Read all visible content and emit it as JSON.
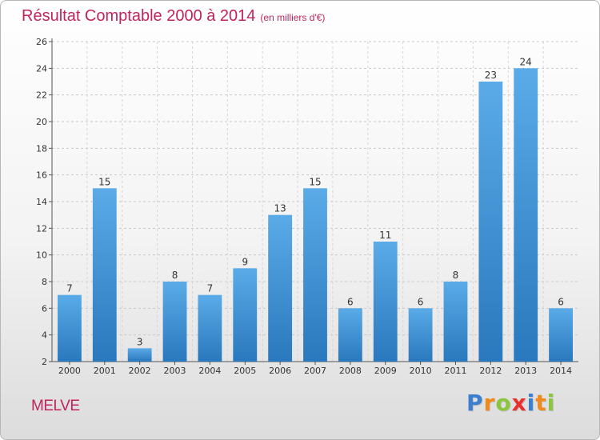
{
  "title": "Résultat Comptable 2000 à 2014",
  "subtitle": "(en milliers d'€)",
  "place": "MELVE",
  "logo": {
    "text": "Proxiti",
    "letters": [
      {
        "ch": "P",
        "color": "#3a7fd0"
      },
      {
        "ch": "r",
        "color": "#f08a1c"
      },
      {
        "ch": "o",
        "color": "#8cc63f"
      },
      {
        "ch": "x",
        "color": "#e8312f"
      },
      {
        "ch": "i",
        "color": "#3a7fd0"
      },
      {
        "ch": "t",
        "color": "#f08a1c"
      },
      {
        "ch": "i",
        "color": "#8cc63f"
      }
    ]
  },
  "colors": {
    "accent": "#c0245d",
    "bar_top": "#5aabe8",
    "bar_bottom": "#2a78bd"
  },
  "chart_data": {
    "type": "bar",
    "categories": [
      "2000",
      "2001",
      "2002",
      "2003",
      "2004",
      "2005",
      "2006",
      "2007",
      "2008",
      "2009",
      "2010",
      "2011",
      "2012",
      "2013",
      "2014"
    ],
    "values": [
      7,
      15,
      3,
      8,
      7,
      9,
      13,
      15,
      6,
      11,
      6,
      8,
      23,
      24,
      6
    ],
    "ylim": [
      2,
      26
    ],
    "yticks": [
      2,
      4,
      6,
      8,
      10,
      12,
      14,
      16,
      18,
      20,
      22,
      24,
      26
    ],
    "grid": true,
    "legend": "none"
  }
}
